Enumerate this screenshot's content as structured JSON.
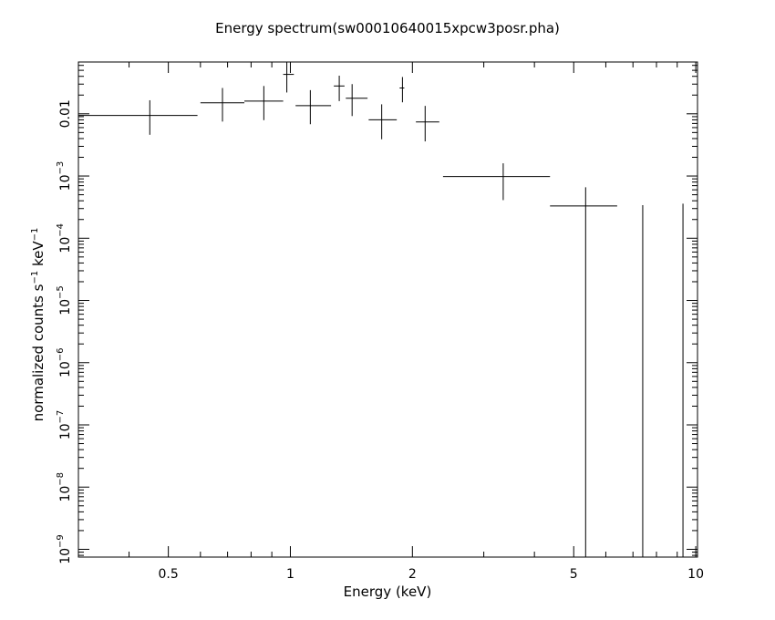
{
  "chart_data": {
    "type": "scatter",
    "title": "Energy spectrum(sw00010640015xpcw3posr.pha)",
    "xlabel": "Energy (keV)",
    "ylabel": {
      "parts": [
        "normalized counts s",
        "−1",
        " keV",
        "−1"
      ]
    },
    "xscale": "log",
    "yscale": "log",
    "xlim": [
      0.3,
      10.1
    ],
    "ylim": [
      7.5e-10,
      0.068
    ],
    "x_tick_labels": [
      {
        "value": 0.5,
        "label": "0.5"
      },
      {
        "value": 1,
        "label": "1"
      },
      {
        "value": 2,
        "label": "2"
      },
      {
        "value": 5,
        "label": "5"
      },
      {
        "value": 10,
        "label": "10"
      }
    ],
    "y_tick_labels": [
      {
        "value": 0.01,
        "base": "0.01",
        "exp": ""
      },
      {
        "value": 0.001,
        "base": "10",
        "exp": "−3"
      },
      {
        "value": 0.0001,
        "base": "10",
        "exp": "−4"
      },
      {
        "value": 1e-05,
        "base": "10",
        "exp": "−5"
      },
      {
        "value": 1e-06,
        "base": "10",
        "exp": "−6"
      },
      {
        "value": 1e-07,
        "base": "10",
        "exp": "−7"
      },
      {
        "value": 1e-08,
        "base": "10",
        "exp": "−8"
      },
      {
        "value": 1e-09,
        "base": "10",
        "exp": "−9"
      }
    ],
    "series": [
      {
        "points": [
          {
            "x": 0.45,
            "xlo": 0.3,
            "xhi": 0.59,
            "y": 0.0094,
            "ylo": 0.0046,
            "yhi": 0.0165
          },
          {
            "x": 0.68,
            "xlo": 0.6,
            "xhi": 0.77,
            "y": 0.015,
            "ylo": 0.0075,
            "yhi": 0.026
          },
          {
            "x": 0.86,
            "xlo": 0.77,
            "xhi": 0.96,
            "y": 0.016,
            "ylo": 0.0079,
            "yhi": 0.028
          },
          {
            "x": 0.98,
            "xlo": 0.96,
            "xhi": 1.02,
            "y": 0.043,
            "ylo": 0.022,
            "yhi": 0.068
          },
          {
            "x": 1.12,
            "xlo": 1.03,
            "xhi": 1.26,
            "y": 0.0135,
            "ylo": 0.0068,
            "yhi": 0.024
          },
          {
            "x": 1.32,
            "xlo": 1.28,
            "xhi": 1.36,
            "y": 0.028,
            "ylo": 0.016,
            "yhi": 0.041
          },
          {
            "x": 1.42,
            "xlo": 1.37,
            "xhi": 1.55,
            "y": 0.0178,
            "ylo": 0.0092,
            "yhi": 0.03
          },
          {
            "x": 1.68,
            "xlo": 1.56,
            "xhi": 1.83,
            "y": 0.008,
            "ylo": 0.0039,
            "yhi": 0.0142
          },
          {
            "x": 1.89,
            "xlo": 1.86,
            "xhi": 1.91,
            "y": 0.026,
            "ylo": 0.0153,
            "yhi": 0.039
          },
          {
            "x": 2.15,
            "xlo": 2.04,
            "xhi": 2.33,
            "y": 0.0074,
            "ylo": 0.0036,
            "yhi": 0.0134
          },
          {
            "x": 3.35,
            "xlo": 2.38,
            "xhi": 4.37,
            "y": 0.00098,
            "ylo": 0.00041,
            "yhi": 0.0016
          },
          {
            "x": 5.35,
            "xlo": 4.37,
            "xhi": 6.4,
            "y": 0.00033,
            "ylo": 7.5e-10,
            "yhi": 0.00066
          },
          {
            "x": 7.4,
            "xlo": 7.4,
            "xhi": 7.4,
            "y": 0.00034,
            "ylo": 7.5e-10,
            "yhi": 0.00034
          },
          {
            "x": 9.3,
            "xlo": 9.3,
            "xhi": 9.3,
            "y": 0.00036,
            "ylo": 7.5e-10,
            "yhi": 0.00036
          }
        ]
      }
    ]
  }
}
